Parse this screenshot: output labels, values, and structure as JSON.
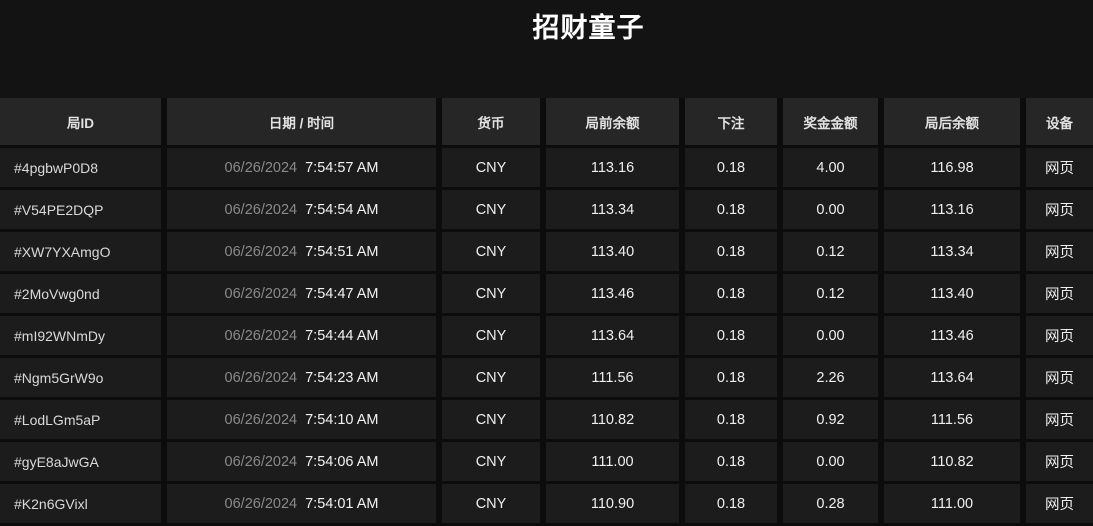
{
  "page": {
    "title": "招财童子"
  },
  "colors": {
    "page_background": "#131313",
    "header_cell_background": "#262626",
    "row_cell_background": "#1c1c1c",
    "gutter": "#0c0c0c",
    "title_text": "#ffffff",
    "primary_text": "#efefef",
    "muted_date_text": "#8a8a8a"
  },
  "table": {
    "columns": [
      {
        "key": "id",
        "label": "局ID"
      },
      {
        "key": "datetime",
        "label": "日期 / 时间"
      },
      {
        "key": "currency",
        "label": "货币"
      },
      {
        "key": "balance_before",
        "label": "局前余额"
      },
      {
        "key": "bet",
        "label": "下注"
      },
      {
        "key": "prize",
        "label": "奖金金额"
      },
      {
        "key": "balance_after",
        "label": "局后余额"
      },
      {
        "key": "device",
        "label": "设备"
      }
    ],
    "rows": [
      {
        "id": "#4pgbwP0D8",
        "date": "06/26/2024",
        "time": "7:54:57 AM",
        "currency": "CNY",
        "balance_before": "113.16",
        "bet": "0.18",
        "prize": "4.00",
        "balance_after": "116.98",
        "device": "网页"
      },
      {
        "id": "#V54PE2DQP",
        "date": "06/26/2024",
        "time": "7:54:54 AM",
        "currency": "CNY",
        "balance_before": "113.34",
        "bet": "0.18",
        "prize": "0.00",
        "balance_after": "113.16",
        "device": "网页"
      },
      {
        "id": "#XW7YXAmgO",
        "date": "06/26/2024",
        "time": "7:54:51 AM",
        "currency": "CNY",
        "balance_before": "113.40",
        "bet": "0.18",
        "prize": "0.12",
        "balance_after": "113.34",
        "device": "网页"
      },
      {
        "id": "#2MoVwg0nd",
        "date": "06/26/2024",
        "time": "7:54:47 AM",
        "currency": "CNY",
        "balance_before": "113.46",
        "bet": "0.18",
        "prize": "0.12",
        "balance_after": "113.40",
        "device": "网页"
      },
      {
        "id": "#mI92WNmDy",
        "date": "06/26/2024",
        "time": "7:54:44 AM",
        "currency": "CNY",
        "balance_before": "113.64",
        "bet": "0.18",
        "prize": "0.00",
        "balance_after": "113.46",
        "device": "网页"
      },
      {
        "id": "#Ngm5GrW9o",
        "date": "06/26/2024",
        "time": "7:54:23 AM",
        "currency": "CNY",
        "balance_before": "111.56",
        "bet": "0.18",
        "prize": "2.26",
        "balance_after": "113.64",
        "device": "网页"
      },
      {
        "id": "#LodLGm5aP",
        "date": "06/26/2024",
        "time": "7:54:10 AM",
        "currency": "CNY",
        "balance_before": "110.82",
        "bet": "0.18",
        "prize": "0.92",
        "balance_after": "111.56",
        "device": "网页"
      },
      {
        "id": "#gyE8aJwGA",
        "date": "06/26/2024",
        "time": "7:54:06 AM",
        "currency": "CNY",
        "balance_before": "111.00",
        "bet": "0.18",
        "prize": "0.00",
        "balance_after": "110.82",
        "device": "网页"
      },
      {
        "id": "#K2n6GVixl",
        "date": "06/26/2024",
        "time": "7:54:01 AM",
        "currency": "CNY",
        "balance_before": "110.90",
        "bet": "0.18",
        "prize": "0.28",
        "balance_after": "111.00",
        "device": "网页"
      }
    ]
  }
}
